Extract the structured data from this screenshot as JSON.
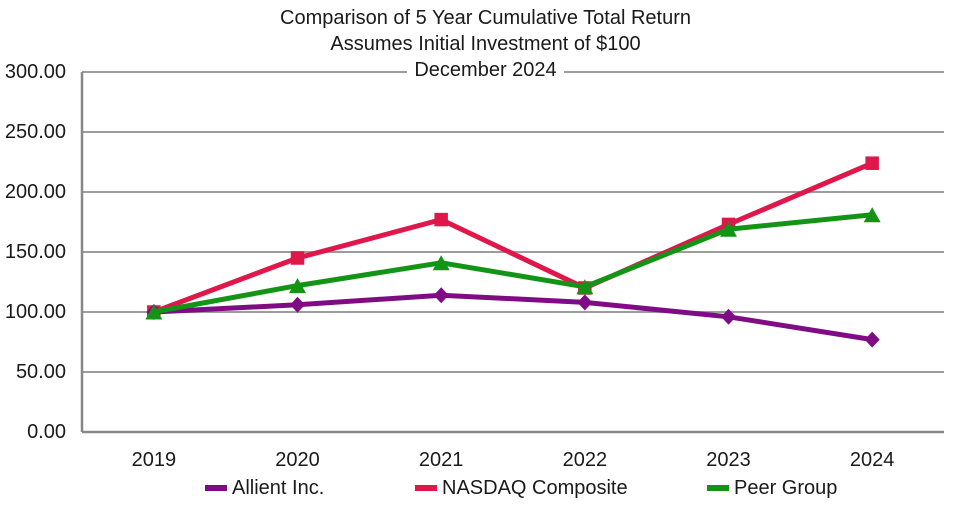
{
  "chart_data": {
    "type": "line",
    "title": "Comparison of 5 Year Cumulative Total Return",
    "subtitle_line1": "Assumes Initial Investment of $100",
    "subtitle_line2": "December 2024",
    "xlabel": "",
    "ylabel": "",
    "categories": [
      "2019",
      "2020",
      "2021",
      "2022",
      "2023",
      "2024"
    ],
    "series": [
      {
        "name": "Allient Inc.",
        "color": "#7F0C85",
        "marker": "diamond",
        "values": [
          100,
          106,
          114,
          108,
          96,
          77
        ]
      },
      {
        "name": "NASDAQ Composite",
        "color": "#E0174B",
        "marker": "square",
        "values": [
          100,
          145,
          177,
          120,
          173,
          224
        ]
      },
      {
        "name": "Peer Group",
        "color": "#149417",
        "marker": "triangle",
        "values": [
          100,
          122,
          141,
          121,
          169,
          181
        ]
      }
    ],
    "ylim": [
      0,
      300
    ],
    "ytick_step": 50,
    "ytick_labels": [
      "0.00",
      "50.00",
      "100.00",
      "150.00",
      "200.00",
      "250.00",
      "300.00"
    ],
    "grid": true,
    "legend_position": "bottom",
    "gridline_color": "#9c9c9c",
    "axis_color": "#878787",
    "text_color": "#1a1a1a"
  }
}
